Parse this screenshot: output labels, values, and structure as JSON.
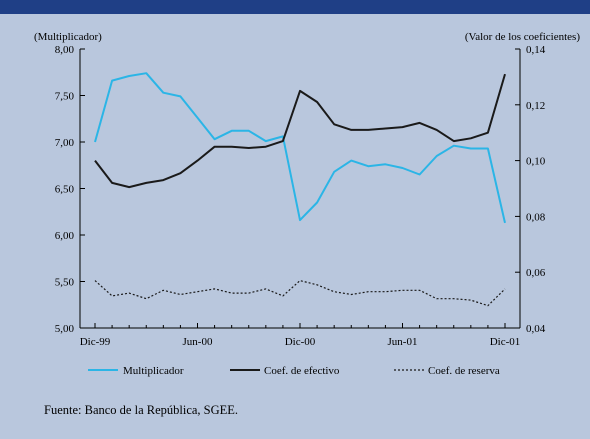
{
  "chart_data": {
    "type": "line",
    "left_axis_title": "(Multiplicador)",
    "right_axis_title": "(Valor de los coeficientes)",
    "left_ylim": [
      5.0,
      8.0
    ],
    "left_ticks": [
      "5,00",
      "5,50",
      "6,00",
      "6,50",
      "7,00",
      "7,50",
      "8,00"
    ],
    "right_ylim": [
      0.04,
      0.14
    ],
    "right_ticks": [
      "0,04",
      "0,06",
      "0,08",
      "0,10",
      "0,12",
      "0,14"
    ],
    "x": [
      "1999-12",
      "2000-01",
      "2000-02",
      "2000-03",
      "2000-04",
      "2000-05",
      "2000-06",
      "2000-07",
      "2000-08",
      "2000-09",
      "2000-10",
      "2000-11",
      "2000-12",
      "2001-01",
      "2001-02",
      "2001-03",
      "2001-04",
      "2001-05",
      "2001-06",
      "2001-07",
      "2001-08",
      "2001-09",
      "2001-10",
      "2001-11",
      "2001-12"
    ],
    "x_tick_labels": [
      "Dic-99",
      "Jun-00",
      "Dic-00",
      "Jun-01",
      "Dic-01"
    ],
    "grid": false,
    "legend_position": "bottom",
    "series": [
      {
        "name": "Multiplicador",
        "axis": "left",
        "color": "#2bb5e6",
        "style": "solid",
        "values": [
          7.0,
          7.66,
          7.71,
          7.74,
          7.53,
          7.49,
          7.26,
          7.03,
          7.12,
          7.12,
          7.01,
          7.06,
          6.16,
          6.35,
          6.68,
          6.8,
          6.74,
          6.76,
          6.72,
          6.65,
          6.85,
          6.96,
          6.93,
          6.93,
          6.13
        ]
      },
      {
        "name": "Coef. de efectivo",
        "axis": "right",
        "color": "#1a1a1a",
        "style": "solid",
        "values": [
          0.1,
          0.092,
          0.0905,
          0.092,
          0.093,
          0.0955,
          0.1,
          0.105,
          0.105,
          0.1045,
          0.105,
          0.107,
          0.125,
          0.121,
          0.113,
          0.111,
          0.111,
          0.1115,
          0.112,
          0.1135,
          0.111,
          0.107,
          0.108,
          0.11,
          0.131
        ]
      },
      {
        "name": "Coef. de reserva",
        "axis": "right",
        "color": "#1a1a1a",
        "style": "dotted",
        "values": [
          0.057,
          0.0515,
          0.0525,
          0.0505,
          0.0535,
          0.052,
          0.053,
          0.054,
          0.0525,
          0.0525,
          0.054,
          0.0515,
          0.057,
          0.0555,
          0.053,
          0.052,
          0.053,
          0.053,
          0.0535,
          0.0535,
          0.0505,
          0.0505,
          0.05,
          0.048,
          0.054
        ]
      }
    ]
  },
  "source": "Fuente: Banco de la República, SGEE.",
  "colors": {
    "background": "#b9c7dd",
    "top_bar": "#1f3f86"
  }
}
